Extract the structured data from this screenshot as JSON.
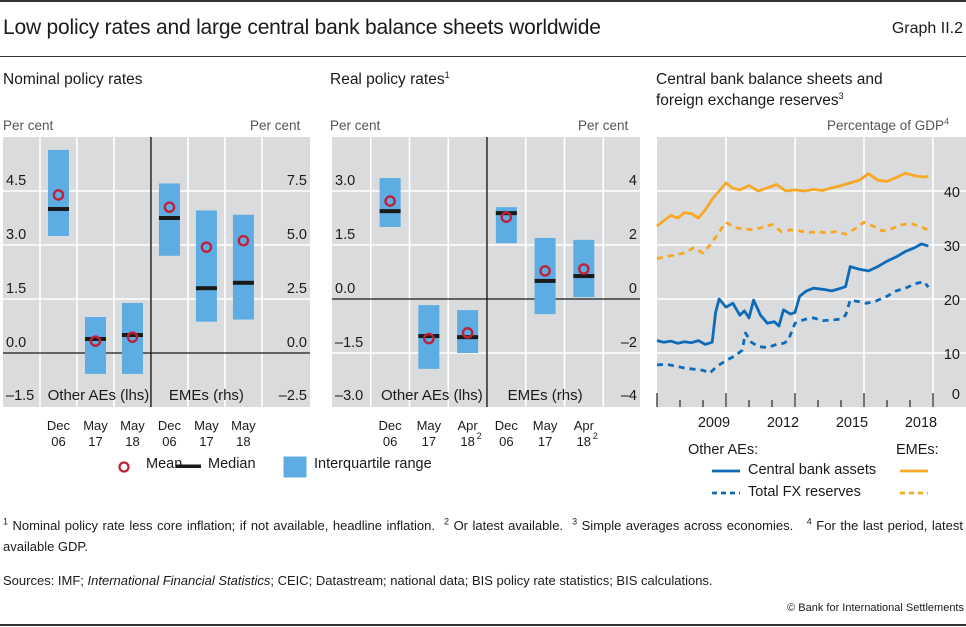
{
  "header": {
    "title": "Low policy rates and large central bank balance sheets worldwide",
    "graph_number": "Graph II.2"
  },
  "colors": {
    "bar": "#5DADE2",
    "mean": "#C0213A",
    "median": "#1A1A1A",
    "plot_bg": "#DADBDD",
    "ae_line": "#0E6BB8",
    "eme_line": "#F9A825"
  },
  "legend_box": {
    "mean": "Mean",
    "median": "Median",
    "iqr": "Interquartile range"
  },
  "legend_lines": {
    "other_aes": "Other AEs:",
    "emes": "EMEs:",
    "cb_assets": "Central bank assets",
    "fx_reserves": "Total FX reserves"
  },
  "footnotes": {
    "n1_mark": "1",
    "n1": "Nominal policy rate less core inflation; if not available, headline inflation.",
    "n2_mark": "2",
    "n2": "Or latest available.",
    "n3_mark": "3",
    "n3": "Simple averages across economies.",
    "n4_mark": "4",
    "n4": "For the last period, latest available GDP.",
    "sources_prefix": "Sources: IMF; ",
    "sources_italic": "International Financial Statistics",
    "sources_rest": "; CEIC; Datastream; national data; BIS policy rate statistics; BIS calculations.",
    "copyright": "© Bank for International Settlements"
  },
  "chart_data": [
    {
      "type": "boxplot",
      "title": "Nominal policy rates",
      "ylabel_left": "Per cent",
      "ylabel_right": "Per cent",
      "left_axis": {
        "range": [
          -1.5,
          6.0
        ],
        "ticks": [
          "4.5",
          "3.0",
          "1.5",
          "0.0",
          "–1.5"
        ],
        "tick_values": [
          4.5,
          3.0,
          1.5,
          0.0,
          -1.5
        ]
      },
      "right_axis": {
        "range": [
          -2.5,
          10.0
        ],
        "ticks": [
          "7.5",
          "5.0",
          "2.5",
          "0.0",
          "–2.5"
        ],
        "tick_values": [
          7.5,
          5.0,
          2.5,
          0.0,
          -2.5
        ]
      },
      "groups": [
        {
          "name": "Other AEs (lhs)",
          "axis": "left",
          "categories": [
            {
              "top": "Dec",
              "bottom": "06",
              "sup": ""
            },
            {
              "top": "May",
              "bottom": "17",
              "sup": ""
            },
            {
              "top": "May",
              "bottom": "18",
              "sup": ""
            }
          ],
          "q1": [
            3.25,
            -0.58,
            -0.58
          ],
          "q3": [
            5.64,
            1.0,
            1.39
          ],
          "median": [
            4.0,
            0.39,
            0.5
          ],
          "mean": [
            4.39,
            0.33,
            0.44
          ]
        },
        {
          "name": "EMEs (rhs)",
          "axis": "right",
          "categories": [
            {
              "top": "Dec",
              "bottom": "06",
              "sup": ""
            },
            {
              "top": "May",
              "bottom": "17",
              "sup": ""
            },
            {
              "top": "May",
              "bottom": "18",
              "sup": ""
            }
          ],
          "q1": [
            4.5,
            1.45,
            1.55
          ],
          "q3": [
            7.85,
            6.6,
            6.4
          ],
          "median": [
            6.25,
            3.0,
            3.25
          ],
          "mean": [
            6.75,
            4.9,
            5.2
          ]
        }
      ]
    },
    {
      "type": "boxplot",
      "title": "Real policy rates",
      "title_sup": "1",
      "ylabel_left": "Per cent",
      "ylabel_right": "Per cent",
      "left_axis": {
        "range": [
          -3.0,
          4.5
        ],
        "ticks": [
          "3.0",
          "1.5",
          "0.0",
          "–1.5",
          "–3.0"
        ],
        "tick_values": [
          3.0,
          1.5,
          0.0,
          -1.5,
          -3.0
        ]
      },
      "right_axis": {
        "range": [
          -4,
          6
        ],
        "ticks": [
          "4",
          "2",
          "0",
          "–2",
          "–4"
        ],
        "tick_values": [
          4,
          2,
          0,
          -2,
          -4
        ]
      },
      "groups": [
        {
          "name": "Other AEs (lhs)",
          "axis": "left",
          "categories": [
            {
              "top": "Dec",
              "bottom": "06",
              "sup": ""
            },
            {
              "top": "May",
              "bottom": "17",
              "sup": ""
            },
            {
              "top": "Apr",
              "bottom": "18",
              "sup": "2"
            }
          ],
          "q1": [
            2.0,
            -1.94,
            -1.5
          ],
          "q3": [
            3.36,
            -0.17,
            -0.31
          ],
          "median": [
            2.44,
            -1.03,
            -1.06
          ],
          "mean": [
            2.72,
            -1.1,
            -0.94
          ]
        },
        {
          "name": "EMEs (rhs)",
          "axis": "right",
          "categories": [
            {
              "top": "Dec",
              "bottom": "06",
              "sup": ""
            },
            {
              "top": "May",
              "bottom": "17",
              "sup": ""
            },
            {
              "top": "Apr",
              "bottom": "18",
              "sup": "2"
            }
          ],
          "q1": [
            2.07,
            -0.56,
            0.07
          ],
          "q3": [
            3.4,
            2.26,
            2.19
          ],
          "median": [
            3.18,
            0.67,
            0.85
          ],
          "mean": [
            3.03,
            1.04,
            1.11
          ]
        }
      ]
    },
    {
      "type": "line",
      "title_line1": "Central bank balance sheets and",
      "title_line2": "foreign exchange reserves",
      "title_sup": "3",
      "ylabel_right": "Percentage of GDP",
      "ylabel_sup": "4",
      "xlim": [
        2006.0,
        2019.4
      ],
      "ylim": [
        0,
        50
      ],
      "x_ticks": [
        "2009",
        "2012",
        "2015",
        "2018"
      ],
      "x_tick_values": [
        2009,
        2012,
        2015,
        2018
      ],
      "y_ticks": [
        "40",
        "30",
        "20",
        "10",
        "0"
      ],
      "y_tick_values": [
        40,
        30,
        20,
        10,
        0
      ],
      "series": [
        {
          "name": "EMEs: Central bank assets",
          "group": "EMEs",
          "style": "solid",
          "color": "#F9A825",
          "x": [
            2006.0,
            2006.3,
            2006.6,
            2006.9,
            2007.2,
            2007.5,
            2007.8,
            2008.1,
            2008.4,
            2008.7,
            2009.0,
            2009.3,
            2009.6,
            2010.0,
            2010.4,
            2010.8,
            2011.2,
            2011.6,
            2012.0,
            2012.4,
            2012.8,
            2013.2,
            2013.6,
            2014.0,
            2014.4,
            2014.8,
            2015.2,
            2015.6,
            2016.0,
            2016.4,
            2016.8,
            2017.2,
            2017.6,
            2017.8
          ],
          "y": [
            33.5,
            34.5,
            35.5,
            35.0,
            36.0,
            35.8,
            35.0,
            36.5,
            38.5,
            40.0,
            41.5,
            40.5,
            40.2,
            41.0,
            40.0,
            40.6,
            41.2,
            40.0,
            40.2,
            40.0,
            40.3,
            40.1,
            40.6,
            41.0,
            41.5,
            42.0,
            43.2,
            42.0,
            41.8,
            42.5,
            43.3,
            42.8,
            42.6,
            42.7
          ]
        },
        {
          "name": "EMEs: Total FX reserves",
          "group": "EMEs",
          "style": "dashed",
          "color": "#F9A825",
          "x": [
            2006.0,
            2006.4,
            2006.8,
            2007.2,
            2007.6,
            2008.0,
            2008.4,
            2008.8,
            2009.0,
            2009.4,
            2009.8,
            2010.2,
            2010.6,
            2011.0,
            2011.4,
            2011.8,
            2012.2,
            2012.6,
            2013.0,
            2013.4,
            2013.8,
            2014.2,
            2014.6,
            2015.0,
            2015.4,
            2015.8,
            2016.2,
            2016.6,
            2017.0,
            2017.4,
            2017.8
          ],
          "y": [
            27.5,
            27.8,
            28.2,
            28.5,
            29.5,
            28.5,
            30.5,
            33.0,
            34.2,
            33.2,
            33.0,
            32.8,
            33.3,
            33.8,
            32.5,
            32.8,
            32.6,
            32.3,
            32.5,
            32.2,
            32.5,
            32.0,
            33.0,
            34.2,
            33.5,
            32.6,
            33.0,
            33.7,
            34.0,
            33.5,
            32.8
          ]
        },
        {
          "name": "Other AEs: Central bank assets",
          "group": "Other AEs",
          "style": "solid",
          "color": "#0E6BB8",
          "x": [
            2006.0,
            2006.3,
            2006.6,
            2006.9,
            2007.2,
            2007.5,
            2007.8,
            2008.1,
            2008.4,
            2008.55,
            2008.7,
            2009.0,
            2009.3,
            2009.6,
            2009.8,
            2010.0,
            2010.2,
            2010.5,
            2010.8,
            2011.1,
            2011.3,
            2011.5,
            2011.8,
            2012.0,
            2012.2,
            2012.5,
            2012.8,
            2013.2,
            2013.6,
            2014.0,
            2014.2,
            2014.4,
            2014.8,
            2015.2,
            2015.6,
            2016.0,
            2016.4,
            2016.8,
            2017.2,
            2017.5,
            2017.8
          ],
          "y": [
            12.3,
            12.0,
            12.2,
            11.8,
            12.1,
            11.9,
            12.3,
            11.6,
            12.0,
            17.5,
            20.0,
            18.5,
            19.2,
            17.0,
            17.8,
            16.5,
            19.8,
            17.0,
            15.5,
            15.8,
            15.0,
            18.0,
            17.2,
            17.5,
            20.5,
            21.5,
            22.0,
            21.8,
            21.5,
            22.0,
            22.3,
            26.0,
            25.5,
            25.2,
            26.0,
            27.0,
            27.8,
            28.8,
            29.5,
            30.2,
            29.8
          ]
        },
        {
          "name": "Other AEs: Total FX reserves",
          "group": "Other AEs",
          "style": "dashed",
          "color": "#0E6BB8",
          "x": [
            2006.0,
            2006.4,
            2006.8,
            2007.2,
            2007.6,
            2008.0,
            2008.3,
            2008.6,
            2009.0,
            2009.4,
            2009.7,
            2009.85,
            2010.1,
            2010.4,
            2010.8,
            2011.2,
            2011.5,
            2011.7,
            2012.0,
            2012.4,
            2012.8,
            2013.2,
            2013.6,
            2014.0,
            2014.2,
            2014.4,
            2014.8,
            2015.1,
            2015.5,
            2016.0,
            2016.4,
            2016.8,
            2017.2,
            2017.6,
            2017.8
          ],
          "y": [
            7.8,
            7.9,
            7.6,
            7.2,
            7.0,
            6.8,
            6.3,
            7.5,
            8.6,
            9.5,
            10.5,
            13.7,
            12.0,
            11.2,
            11.0,
            11.6,
            11.8,
            12.3,
            15.5,
            16.2,
            16.5,
            16.0,
            16.1,
            16.3,
            17.0,
            19.8,
            19.5,
            19.2,
            19.6,
            20.5,
            21.5,
            22.0,
            22.8,
            23.2,
            22.2
          ]
        }
      ]
    }
  ]
}
